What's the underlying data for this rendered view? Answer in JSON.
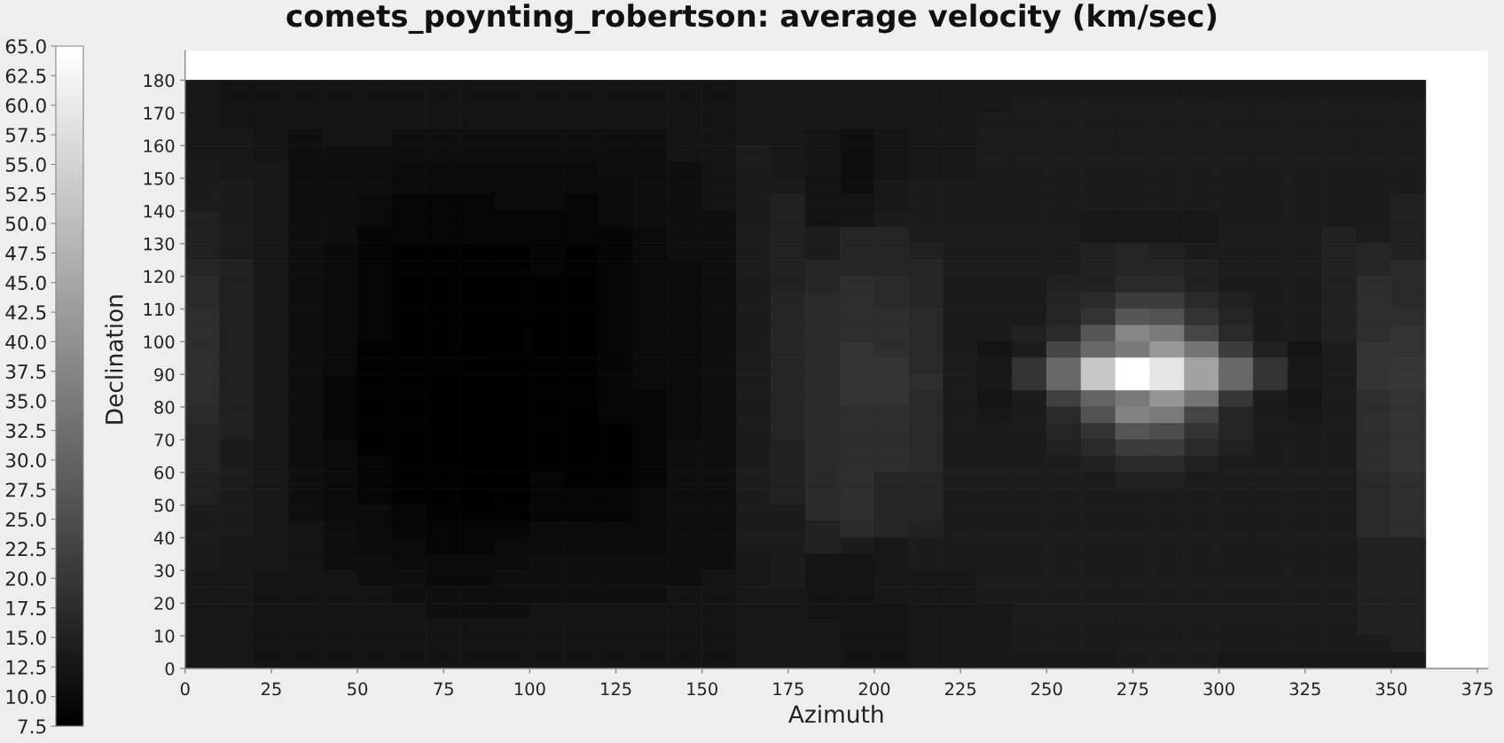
{
  "chart_data": {
    "type": "heatmap",
    "title": "comets_poynting_robertson: average velocity (km/sec)",
    "xlabel": "Azimuth",
    "ylabel": "Declination",
    "x": [
      5,
      15,
      25,
      35,
      45,
      55,
      65,
      75,
      85,
      95,
      105,
      115,
      125,
      135,
      145,
      155,
      165,
      175,
      185,
      195,
      205,
      215,
      225,
      235,
      245,
      255,
      265,
      275,
      285,
      295,
      305,
      315,
      325,
      335,
      345,
      355
    ],
    "y": [
      177.5,
      172.5,
      167.5,
      162.5,
      157.5,
      152.5,
      147.5,
      142.5,
      137.5,
      132.5,
      127.5,
      122.5,
      117.5,
      112.5,
      107.5,
      102.5,
      97.5,
      92.5,
      87.5,
      82.5,
      77.5,
      72.5,
      67.5,
      62.5,
      57.5,
      52.5,
      47.5,
      42.5,
      37.5,
      32.5,
      27.5,
      22.5,
      17.5,
      12.5,
      7.5,
      2.5
    ],
    "cells": [
      [
        13,
        12,
        12,
        12,
        12,
        12,
        12,
        12,
        12,
        12,
        12,
        12,
        12,
        12,
        12,
        12,
        13,
        13,
        13,
        13,
        13,
        13,
        13,
        13,
        13,
        13,
        13,
        13,
        13,
        13,
        13,
        13,
        13,
        13,
        13,
        13
      ],
      [
        13,
        12,
        12,
        12,
        12,
        12,
        12,
        12,
        12,
        12,
        12,
        12,
        12,
        12,
        12,
        12,
        13,
        13,
        13,
        13,
        13,
        13,
        13,
        13,
        14,
        14,
        14,
        14,
        14,
        14,
        14,
        14,
        14,
        14,
        14,
        14
      ],
      [
        13,
        12,
        12,
        12,
        12,
        12,
        12,
        12,
        12,
        12,
        12,
        12,
        12,
        12,
        12,
        12,
        13,
        13,
        13,
        13,
        13,
        13,
        13,
        14,
        14,
        14,
        14,
        14,
        14,
        14,
        14,
        14,
        14,
        14,
        14,
        14
      ],
      [
        13,
        13,
        12,
        11,
        12,
        12,
        11,
        11,
        11,
        11,
        11,
        11,
        11,
        11,
        12,
        12,
        13,
        13,
        12,
        11,
        12,
        13,
        13,
        14,
        14,
        14,
        14,
        14,
        14,
        14,
        14,
        14,
        14,
        14,
        14,
        14
      ],
      [
        13,
        13,
        12,
        11,
        11,
        11,
        11,
        11,
        11,
        11,
        11,
        11,
        11,
        11,
        12,
        12,
        14,
        13,
        12,
        11,
        12,
        13,
        13,
        14,
        14,
        14,
        14,
        14,
        14,
        14,
        14,
        14,
        14,
        14,
        14,
        14
      ],
      [
        14,
        13,
        13,
        11,
        11,
        11,
        10,
        10,
        10,
        10,
        10,
        10,
        11,
        11,
        11,
        12,
        14,
        13,
        12,
        11,
        12,
        13,
        13,
        14,
        14,
        14,
        14,
        14,
        14,
        14,
        14,
        14,
        14,
        14,
        14,
        14
      ],
      [
        14,
        14,
        13,
        11,
        11,
        11,
        10,
        10,
        10,
        10,
        10,
        10,
        10,
        11,
        11,
        12,
        14,
        14,
        12,
        11,
        13,
        14,
        14,
        14,
        14,
        14,
        14,
        14,
        14,
        14,
        14,
        14,
        14,
        14,
        14,
        14
      ],
      [
        14,
        14,
        13,
        11,
        11,
        10,
        9,
        9,
        9,
        10,
        10,
        9,
        10,
        11,
        11,
        12,
        14,
        15,
        12,
        12,
        13,
        14,
        14,
        14,
        14,
        14,
        14,
        14,
        14,
        14,
        14,
        14,
        14,
        14,
        14,
        15
      ],
      [
        15,
        14,
        13,
        11,
        11,
        10,
        9,
        9,
        9,
        9,
        9,
        9,
        10,
        11,
        11,
        11,
        14,
        15,
        12,
        12,
        14,
        14,
        14,
        14,
        14,
        14,
        13,
        13,
        13,
        13,
        14,
        14,
        14,
        14,
        14,
        15
      ],
      [
        15,
        14,
        13,
        11,
        11,
        9,
        9,
        9,
        9,
        9,
        9,
        9,
        9,
        10,
        11,
        11,
        14,
        15,
        14,
        16,
        16,
        14,
        14,
        14,
        14,
        14,
        13,
        13,
        13,
        13,
        14,
        14,
        14,
        15,
        14,
        15
      ],
      [
        15,
        14,
        13,
        11,
        10,
        9,
        8,
        8,
        8,
        8,
        9,
        8,
        9,
        10,
        11,
        11,
        14,
        15,
        14,
        16,
        16,
        15,
        14,
        14,
        14,
        14,
        15,
        16,
        15,
        14,
        14,
        14,
        14,
        15,
        16,
        15
      ],
      [
        16,
        15,
        13,
        11,
        10,
        9,
        8,
        8,
        8,
        8,
        9,
        8,
        9,
        10,
        10,
        11,
        14,
        15,
        16,
        16,
        16,
        16,
        14,
        14,
        14,
        14,
        15,
        16,
        16,
        15,
        14,
        14,
        14,
        15,
        16,
        17
      ],
      [
        17,
        15,
        13,
        11,
        10,
        9,
        8,
        8,
        8,
        8,
        8,
        8,
        9,
        10,
        10,
        11,
        14,
        15,
        16,
        18,
        17,
        16,
        14,
        14,
        14,
        15,
        15,
        17,
        17,
        15,
        14,
        14,
        14,
        15,
        18,
        17
      ],
      [
        17,
        15,
        13,
        11,
        10,
        9,
        8,
        8,
        8,
        8,
        8,
        8,
        9,
        10,
        10,
        11,
        14,
        16,
        17,
        18,
        17,
        16,
        14,
        14,
        14,
        16,
        17,
        21,
        21,
        17,
        15,
        14,
        14,
        15,
        18,
        17
      ],
      [
        18,
        15,
        13,
        11,
        10,
        9,
        8,
        8,
        8,
        8,
        8,
        8,
        9,
        10,
        10,
        11,
        14,
        16,
        17,
        18,
        18,
        17,
        14,
        14,
        14,
        16,
        19,
        27,
        26,
        19,
        16,
        14,
        14,
        15,
        18,
        18
      ],
      [
        18,
        15,
        13,
        11,
        10,
        9,
        8,
        8,
        8,
        8,
        8,
        8,
        9,
        10,
        10,
        11,
        14,
        16,
        17,
        18,
        18,
        17,
        14,
        14,
        15,
        17,
        27,
        38,
        35,
        23,
        17,
        14,
        14,
        15,
        18,
        19
      ],
      [
        18,
        15,
        13,
        11,
        10,
        8,
        8,
        8,
        7.5,
        8,
        8,
        8,
        9,
        10,
        10,
        11,
        14,
        16,
        17,
        19,
        18,
        17,
        14,
        12,
        14,
        23,
        31,
        35,
        42,
        34,
        21,
        15,
        12,
        14,
        19,
        19
      ],
      [
        18,
        15,
        13,
        11,
        10,
        8,
        8,
        8,
        7.5,
        7.5,
        8,
        8,
        9,
        10,
        10,
        11,
        14,
        16,
        17,
        19,
        19,
        17,
        14,
        13,
        19,
        31,
        52,
        65,
        59,
        44,
        31,
        19,
        13,
        14,
        19,
        20
      ],
      [
        18,
        15,
        13,
        11,
        9,
        8,
        8,
        7.5,
        7.5,
        7.5,
        8,
        8,
        9,
        10,
        10,
        11,
        14,
        16,
        17,
        19,
        19,
        18,
        14,
        13,
        19,
        31,
        52,
        65,
        59,
        44,
        31,
        19,
        13,
        14,
        19,
        20
      ],
      [
        18,
        15,
        13,
        11,
        9,
        8,
        8,
        7.5,
        7.5,
        7.5,
        8,
        8,
        9,
        9,
        10,
        11,
        14,
        16,
        17,
        19,
        19,
        17,
        14,
        12,
        14,
        22,
        30,
        35,
        41,
        34,
        20,
        14,
        12,
        14,
        18,
        19
      ],
      [
        17,
        15,
        13,
        11,
        9,
        8,
        8,
        7.5,
        7.5,
        7.5,
        8,
        7.5,
        9,
        9,
        10,
        11,
        14,
        16,
        17,
        18,
        18,
        17,
        14,
        13,
        14,
        17,
        26,
        37,
        35,
        23,
        16,
        14,
        13,
        14,
        18,
        19
      ],
      [
        16,
        15,
        13,
        11,
        9,
        8,
        8,
        7.5,
        7.5,
        7.5,
        8,
        7.5,
        8,
        9,
        10,
        11,
        14,
        16,
        17,
        18,
        18,
        17,
        14,
        14,
        14,
        16,
        19,
        27,
        25,
        19,
        16,
        14,
        14,
        14,
        18,
        19
      ],
      [
        16,
        14,
        13,
        11,
        10,
        8,
        8,
        7.5,
        7.5,
        7.5,
        8,
        7.5,
        8,
        9,
        11,
        11,
        14,
        15,
        17,
        18,
        18,
        17,
        14,
        14,
        14,
        15,
        17,
        21,
        21,
        17,
        15,
        14,
        14,
        14,
        18,
        19
      ],
      [
        16,
        14,
        13,
        11,
        10,
        9,
        8,
        8,
        7.5,
        7.5,
        8,
        8,
        8,
        9,
        11,
        11,
        14,
        15,
        17,
        18,
        18,
        17,
        14,
        14,
        14,
        14,
        15,
        17,
        17,
        15,
        14,
        14,
        14,
        14,
        18,
        19
      ],
      [
        15,
        14,
        13,
        11,
        10,
        9,
        8,
        8,
        7.5,
        7.5,
        9,
        8,
        8,
        9,
        11,
        11,
        14,
        15,
        17,
        18,
        16,
        16,
        14,
        14,
        14,
        14,
        14,
        15,
        15,
        14,
        14,
        14,
        14,
        14,
        17,
        18
      ],
      [
        15,
        14,
        13,
        11,
        10,
        9,
        8,
        8,
        7.5,
        8,
        9,
        9,
        9,
        10,
        11,
        11,
        14,
        15,
        17,
        18,
        16,
        16,
        14,
        14,
        14,
        14,
        14,
        14,
        14,
        14,
        14,
        14,
        14,
        14,
        17,
        18
      ],
      [
        14,
        14,
        13,
        11,
        10,
        10,
        9,
        8,
        8,
        8,
        9,
        9,
        9,
        10,
        11,
        11,
        14,
        14,
        17,
        18,
        16,
        16,
        14,
        14,
        14,
        14,
        14,
        14,
        14,
        14,
        14,
        14,
        14,
        14,
        17,
        18
      ],
      [
        14,
        14,
        13,
        12,
        11,
        10,
        9,
        9,
        9,
        9,
        10,
        10,
        10,
        10,
        11,
        11,
        14,
        14,
        15,
        17,
        16,
        15,
        14,
        14,
        14,
        14,
        14,
        14,
        14,
        14,
        14,
        14,
        14,
        14,
        17,
        18
      ],
      [
        14,
        13,
        13,
        12,
        11,
        10,
        10,
        9,
        9,
        10,
        10,
        10,
        10,
        10,
        11,
        11,
        14,
        14,
        15,
        14,
        13,
        14,
        14,
        14,
        14,
        14,
        14,
        14,
        14,
        14,
        14,
        14,
        14,
        14,
        15,
        15
      ],
      [
        14,
        13,
        13,
        12,
        11,
        11,
        10,
        10,
        10,
        10,
        11,
        11,
        11,
        11,
        11,
        11,
        13,
        14,
        12,
        12,
        13,
        14,
        14,
        14,
        14,
        14,
        14,
        14,
        14,
        14,
        14,
        14,
        14,
        14,
        15,
        15
      ],
      [
        13,
        13,
        12,
        12,
        12,
        11,
        11,
        10,
        10,
        11,
        11,
        11,
        11,
        11,
        11,
        12,
        13,
        14,
        12,
        12,
        13,
        13,
        13,
        14,
        14,
        14,
        14,
        14,
        14,
        14,
        14,
        14,
        14,
        14,
        15,
        15
      ],
      [
        13,
        13,
        12,
        12,
        12,
        12,
        11,
        11,
        11,
        11,
        11,
        11,
        11,
        11,
        12,
        12,
        13,
        13,
        12,
        12,
        13,
        13,
        13,
        14,
        14,
        14,
        14,
        14,
        14,
        14,
        14,
        14,
        14,
        14,
        15,
        15
      ],
      [
        13,
        13,
        12,
        12,
        12,
        12,
        12,
        11,
        11,
        11,
        12,
        12,
        12,
        12,
        12,
        12,
        13,
        13,
        12,
        12,
        12,
        13,
        13,
        13,
        14,
        14,
        14,
        14,
        14,
        14,
        14,
        14,
        14,
        14,
        15,
        15
      ],
      [
        13,
        13,
        12,
        12,
        12,
        12,
        12,
        12,
        12,
        12,
        12,
        12,
        12,
        12,
        12,
        12,
        13,
        13,
        13,
        12,
        12,
        13,
        13,
        13,
        14,
        14,
        14,
        14,
        14,
        14,
        14,
        14,
        14,
        14,
        15,
        15
      ],
      [
        13,
        13,
        12,
        12,
        12,
        12,
        12,
        12,
        12,
        12,
        12,
        12,
        12,
        12,
        12,
        12,
        13,
        13,
        13,
        12,
        12,
        13,
        13,
        13,
        14,
        14,
        14,
        14,
        14,
        14,
        14,
        14,
        14,
        14,
        14,
        15
      ],
      [
        13,
        13,
        12,
        12,
        12,
        12,
        12,
        12,
        12,
        12,
        12,
        12,
        12,
        12,
        12,
        12,
        13,
        13,
        13,
        12,
        12,
        13,
        13,
        13,
        13,
        13,
        13,
        14,
        14,
        14,
        13,
        13,
        13,
        13,
        13,
        13
      ]
    ],
    "xlim": [
      0,
      378
    ],
    "ylim": [
      0,
      189
    ],
    "xticks": [
      0,
      25,
      50,
      75,
      100,
      125,
      150,
      175,
      200,
      225,
      250,
      275,
      300,
      325,
      350,
      375
    ],
    "yticks": [
      0,
      10,
      20,
      30,
      40,
      50,
      60,
      70,
      80,
      90,
      100,
      110,
      120,
      130,
      140,
      150,
      160,
      170,
      180
    ],
    "clim": [
      7.5,
      65
    ],
    "cticks": [
      7.5,
      {
        "value": 10,
        "label": "10.0"
      },
      12.5,
      {
        "value": 15,
        "label": "15.0"
      },
      17.5,
      {
        "value": 20,
        "label": "20.0"
      },
      22.5,
      {
        "value": 25,
        "label": "25.0"
      },
      27.5,
      {
        "value": 30,
        "label": "30.0"
      },
      32.5,
      {
        "value": 35,
        "label": "35.0"
      },
      37.5,
      {
        "value": 40,
        "label": "40.0"
      },
      42.5,
      {
        "value": 45,
        "label": "45.0"
      },
      47.5,
      {
        "value": 50,
        "label": "50.0"
      },
      52.5,
      {
        "value": 55,
        "label": "55.0"
      },
      57.5,
      {
        "value": 60,
        "label": "60.0"
      },
      62.5,
      {
        "value": 65,
        "label": "65.0"
      }
    ]
  }
}
